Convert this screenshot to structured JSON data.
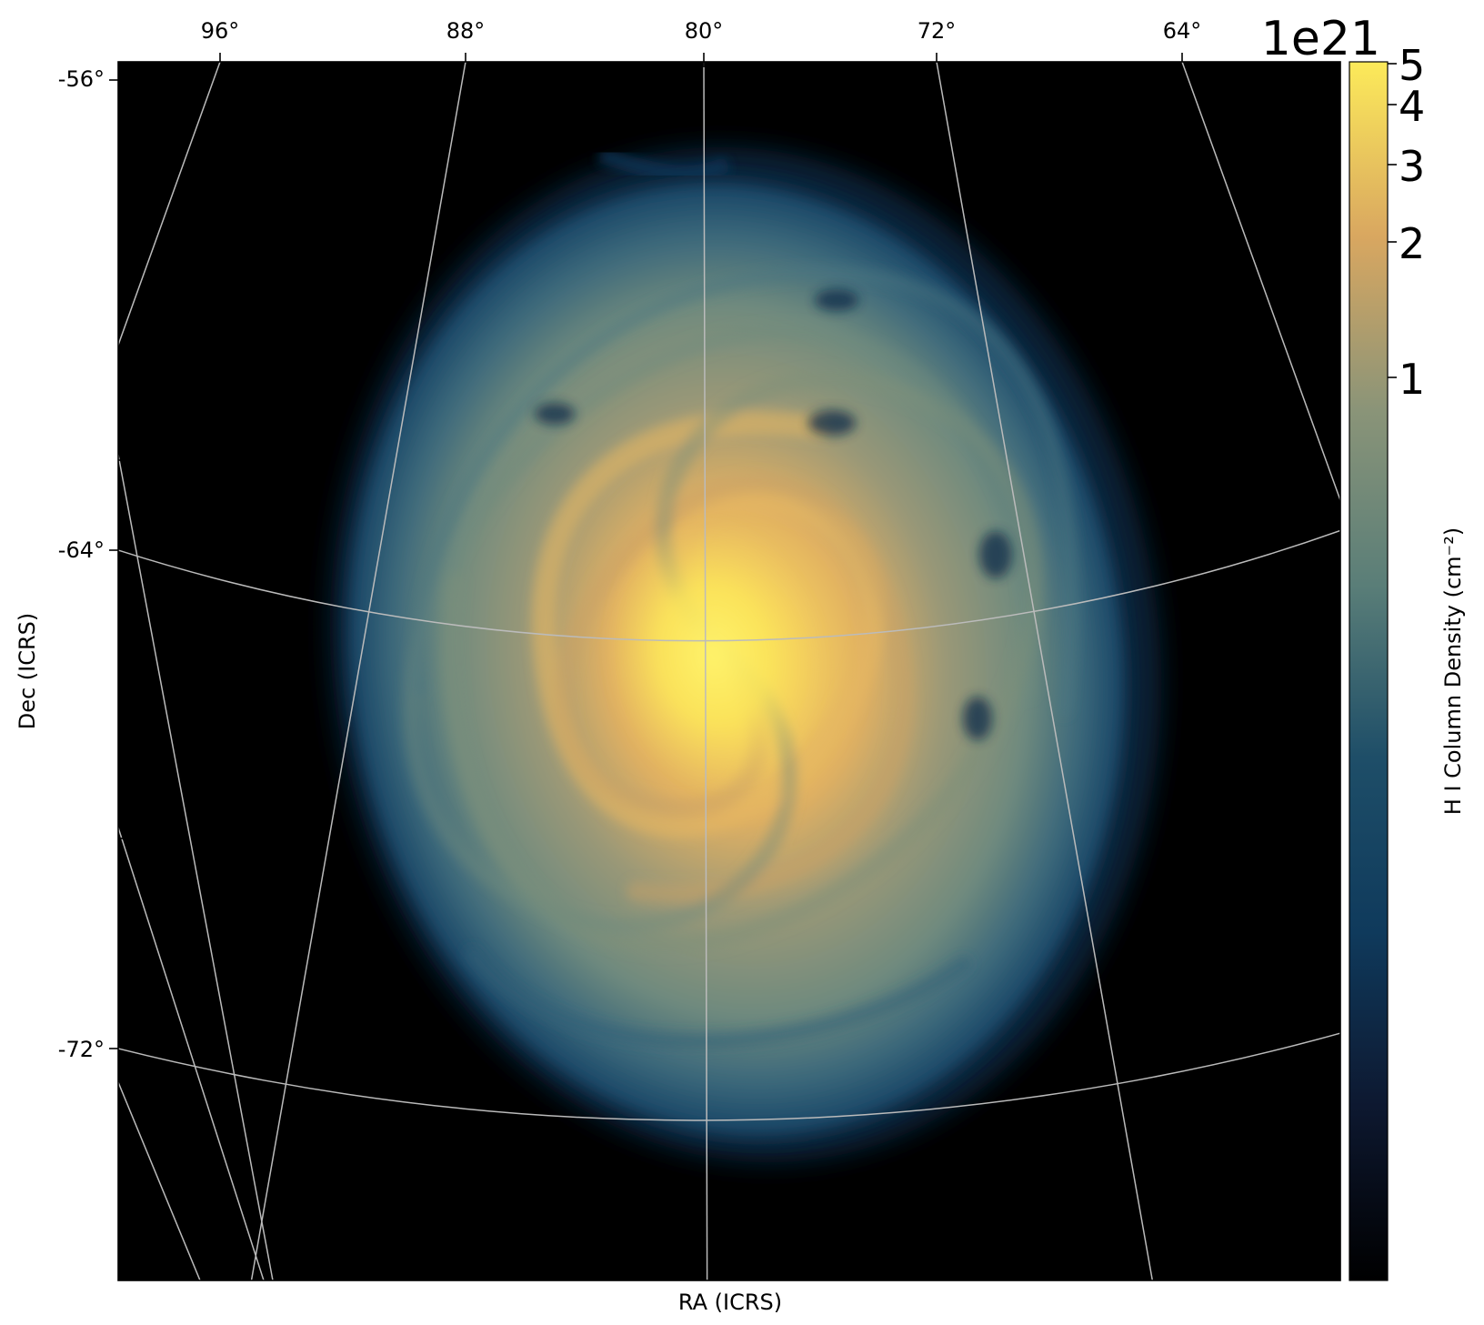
{
  "chart_data": {
    "type": "heatmap",
    "projection": "sky image in RA/Dec with curved coordinate grid",
    "xlabel": "RA (ICRS)",
    "ylabel": "Dec (ICRS)",
    "ra_ticks": [
      "96°",
      "88°",
      "80°",
      "72°",
      "64°"
    ],
    "ra_tick_values": [
      96,
      88,
      80,
      72,
      64
    ],
    "dec_ticks": [
      "-56°",
      "-64°",
      "-72°"
    ],
    "dec_tick_values": [
      -56,
      -64,
      -72
    ],
    "grid": true,
    "grid_color": "#bbbbbb",
    "background_color": "#000000",
    "colorbar": {
      "label": "H I Column Density (cm⁻²)",
      "scale": "log",
      "offset_label": "1e21",
      "range": [
        0.05,
        5
      ],
      "ticks": [
        "5",
        "4",
        "3",
        "2",
        "1"
      ],
      "tick_values": [
        5,
        4,
        3,
        2,
        1
      ],
      "colors": [
        "#000000",
        "#0d1830",
        "#0f3a5c",
        "#1e4e68",
        "#5a7e78",
        "#8a9478",
        "#d9a760",
        "#fcea5a"
      ]
    },
    "feature": {
      "description_visible": "face-on spiral disk",
      "peak_color": "#fcea5a",
      "outer_color": "#1d4e6c"
    }
  }
}
